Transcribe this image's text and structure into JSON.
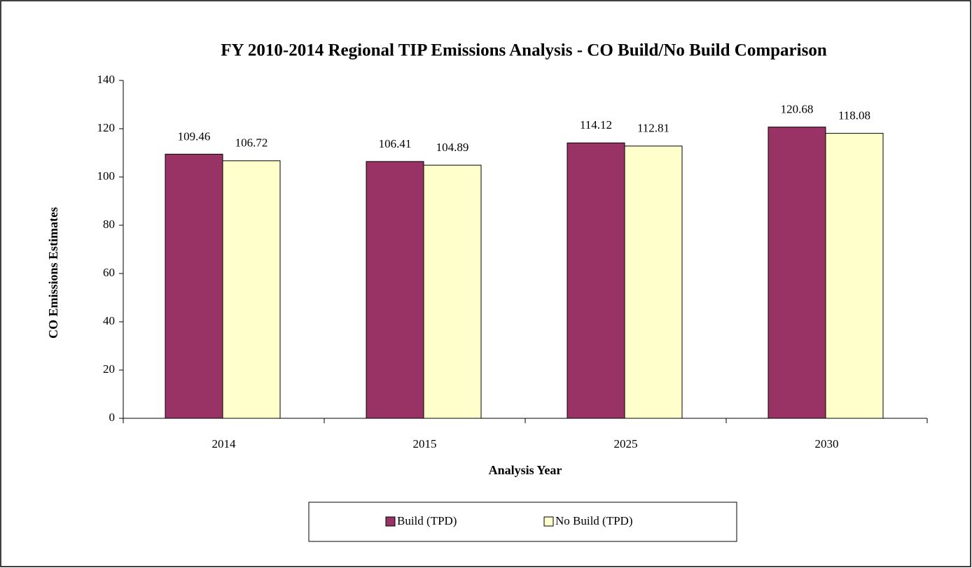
{
  "chart_data": {
    "type": "bar",
    "title": "FY 2010-2014 Regional TIP Emissions Analysis - CO Build/No Build Comparison",
    "x_label": "Analysis Year",
    "y_label": "CO Emissions Estimates",
    "categories": [
      "2014",
      "2015",
      "2025",
      "2030"
    ],
    "series": [
      {
        "name": "Build (TPD)",
        "color": "#993366",
        "values": [
          109.46,
          106.41,
          114.12,
          120.68
        ]
      },
      {
        "name": "No Build (TPD)",
        "color": "#ffffcc",
        "values": [
          106.72,
          104.89,
          112.81,
          118.08
        ]
      }
    ],
    "ylim": [
      0,
      140
    ],
    "yticks": [
      0,
      20,
      40,
      60,
      80,
      100,
      120,
      140
    ],
    "grid": false,
    "legend": "bottom"
  }
}
